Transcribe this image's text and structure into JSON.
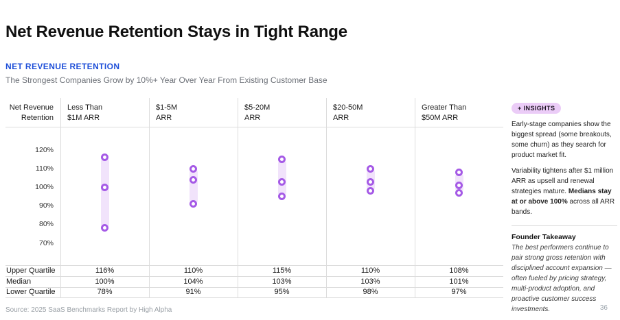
{
  "header": {
    "title": "Net Revenue Retention Stays in Tight Range",
    "section_label": "NET REVENUE RETENTION",
    "subtitle": "The Strongest Companies Grow by 10%+ Year Over Year From Existing Customer Base"
  },
  "chart_data": {
    "type": "scatter",
    "title": "Net Revenue Retention",
    "axis_header_lines": [
      "Net Revenue",
      "Retention"
    ],
    "categories": [
      "Less Than $1M ARR",
      "$1-5M ARR",
      "$5-20M ARR",
      "$20-50M ARR",
      "Greater Than $50M ARR"
    ],
    "category_lines": [
      [
        "Less Than",
        "$1M ARR"
      ],
      [
        "$1-5M",
        "ARR"
      ],
      [
        "$5-20M",
        "ARR"
      ],
      [
        "$20-50M",
        "ARR"
      ],
      [
        "Greater Than",
        "$50M ARR"
      ]
    ],
    "y_tick_values": [
      120,
      110,
      100,
      90,
      80,
      70
    ],
    "y_tick_suffix": "%",
    "ylim": [
      64,
      126
    ],
    "grid": false,
    "legend": "none",
    "series": [
      {
        "name": "Upper Quartile",
        "values": [
          116,
          110,
          115,
          110,
          108
        ]
      },
      {
        "name": "Median",
        "values": [
          100,
          104,
          103,
          103,
          101
        ]
      },
      {
        "name": "Lower Quartile",
        "values": [
          78,
          91,
          95,
          98,
          97
        ]
      }
    ],
    "colors": {
      "dot_ring": "#a55ae6",
      "range_band": "#f1e3fb"
    }
  },
  "summary_table": {
    "row_labels": [
      "Upper Quartile",
      "Median",
      "Lower Quartile"
    ],
    "rows": [
      [
        "116%",
        "110%",
        "115%",
        "110%",
        "108%"
      ],
      [
        "100%",
        "104%",
        "103%",
        "103%",
        "101%"
      ],
      [
        "78%",
        "91%",
        "95%",
        "98%",
        "97%"
      ]
    ]
  },
  "insights": {
    "badge_icon": "+",
    "badge_label": "INSIGHTS",
    "p1": "Early-stage companies show the biggest spread (some breakouts, some churn) as they search for product market fit.",
    "p2_pre": "Variability tightens after $1 million ARR as upsell and renewal strategies mature. ",
    "p2_bold": "Medians stay at or above 100%",
    "p2_post": " across all ARR bands.",
    "founder_takeaway_title": "Founder Takeaway",
    "founder_takeaway_text": "The best performers continue to pair strong gross retention with disciplined account expansion — often fueled by pricing strategy, multi-product adoption, and proactive customer success investments."
  },
  "footer": {
    "source": "Source: 2025 SaaS Benchmarks Report by High Alpha",
    "page_number": "36"
  },
  "colors": {
    "section_label": "#1d4ed8",
    "badge_bg": "#ebccf7",
    "table_border": "#dcdcdc"
  }
}
